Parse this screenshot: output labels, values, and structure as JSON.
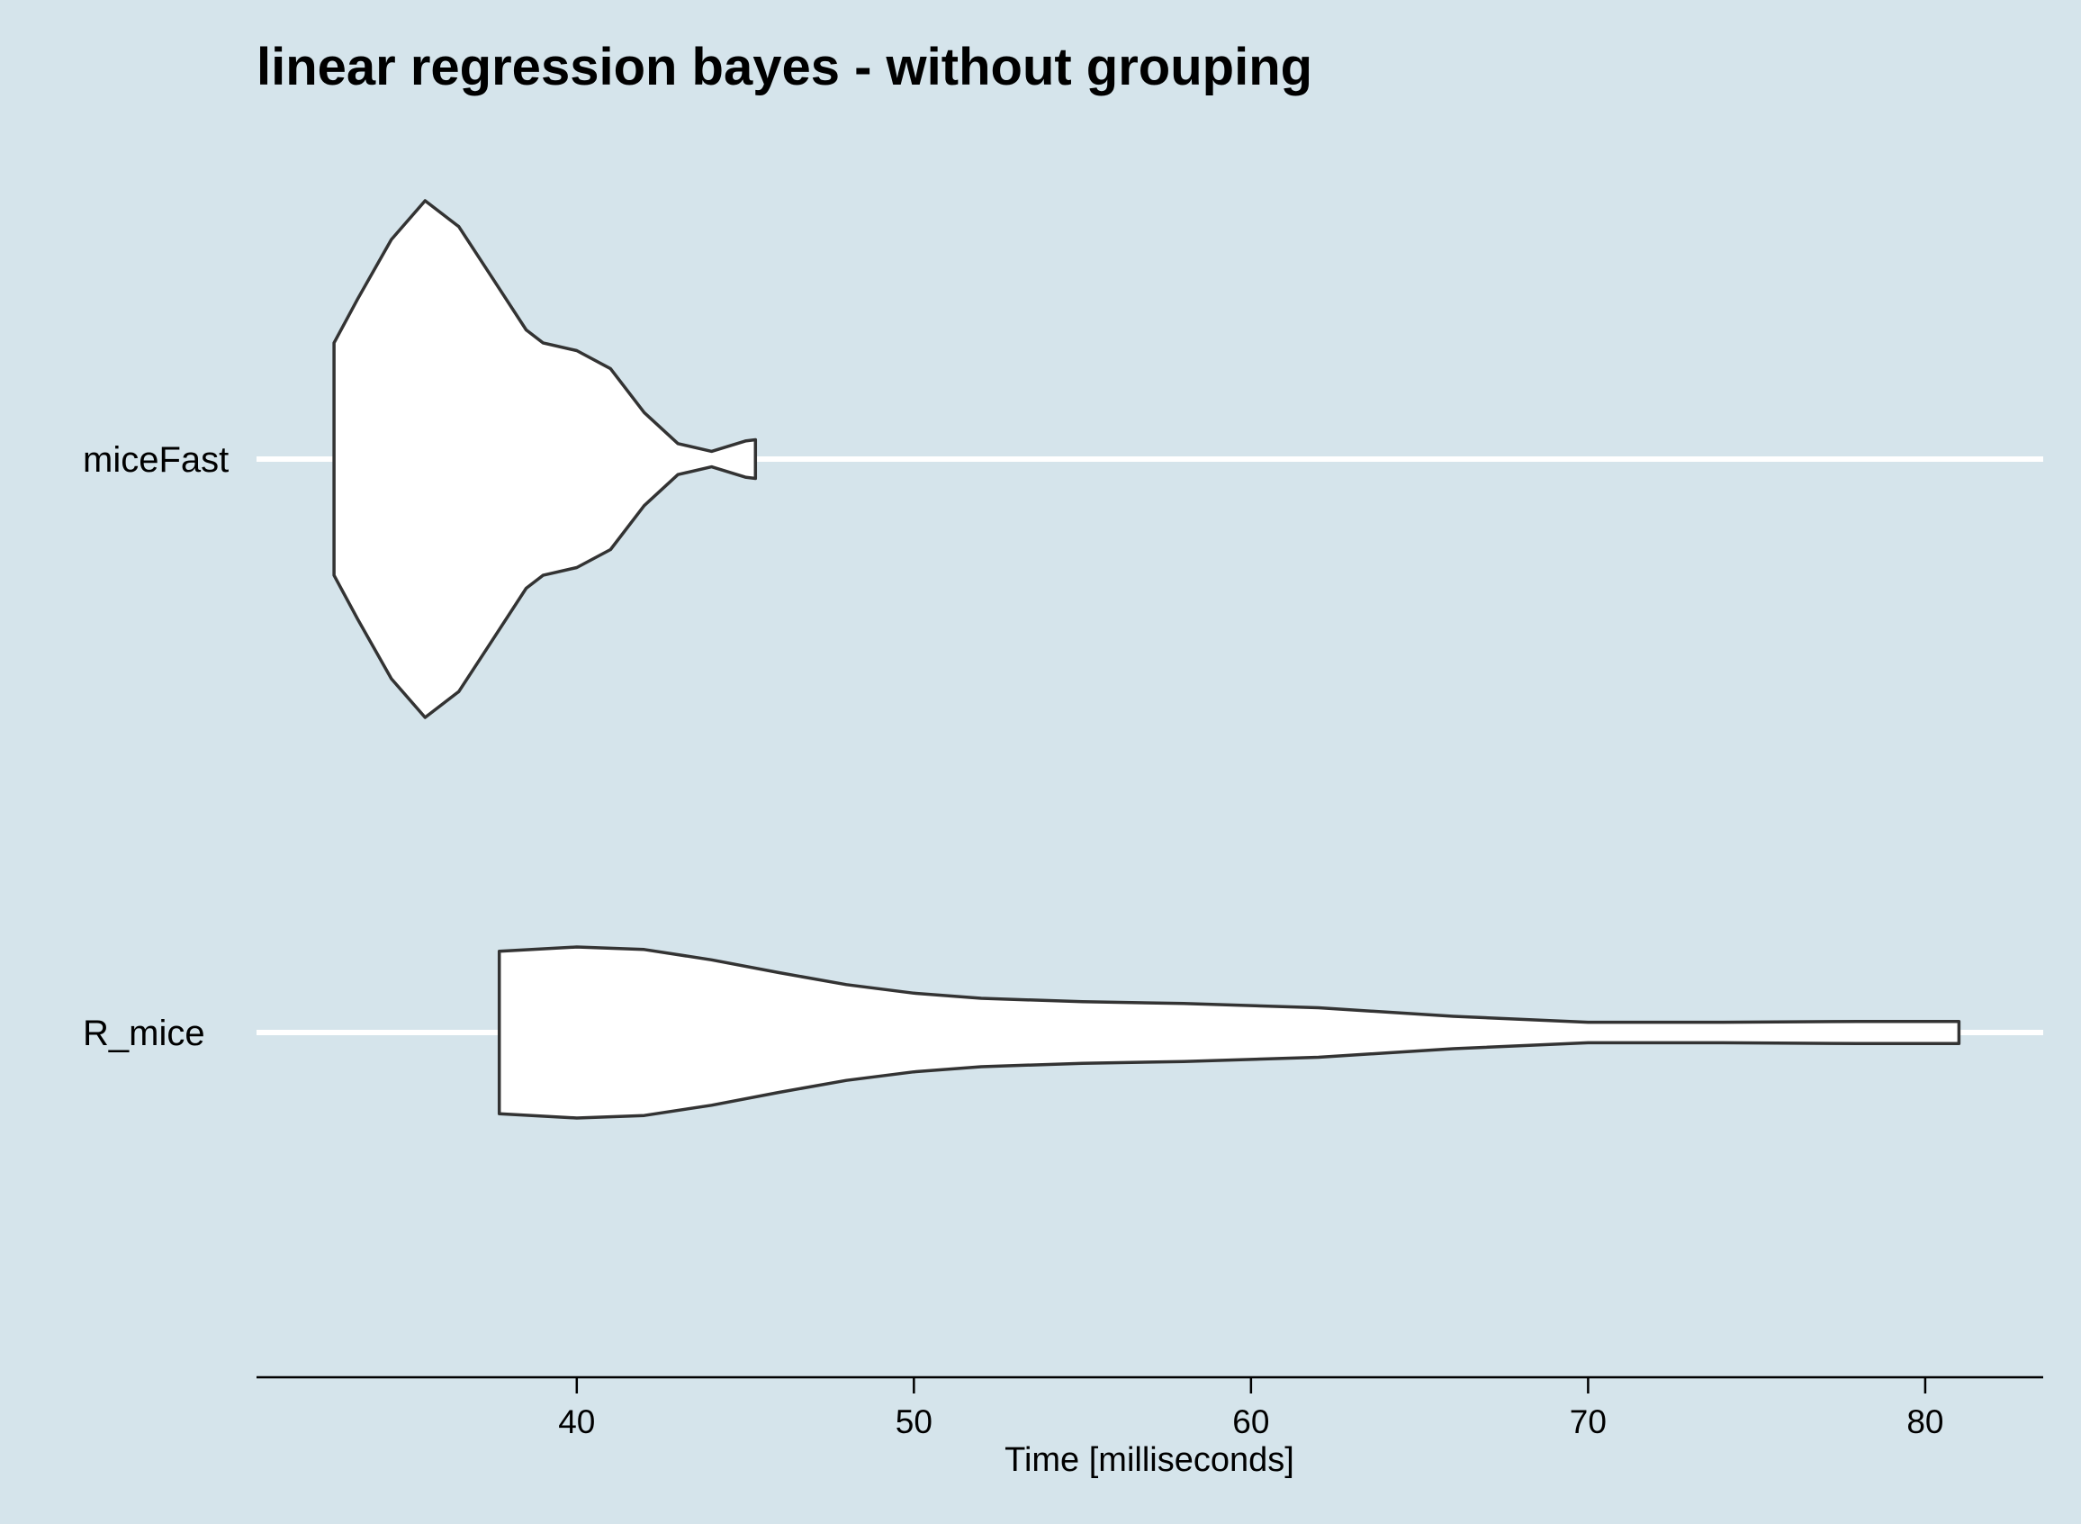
{
  "chart_data": {
    "type": "violin",
    "title": "linear regression bayes - without grouping",
    "xlabel": "Time [milliseconds]",
    "ylabel": "",
    "orientation": "horizontal",
    "xlim": [
      30.5,
      83.5
    ],
    "xticks": [
      40,
      50,
      60,
      70,
      80
    ],
    "categories": [
      "miceFast",
      "R_mice"
    ],
    "grid": {
      "horizontal": true,
      "vertical": false
    },
    "background_color": "#d5e4eb",
    "fill_color": "#ffffff",
    "outline_color": "#333333",
    "series": [
      {
        "category": "miceFast",
        "min": 32.8,
        "max": 45.3,
        "density_profile": [
          [
            32.8,
            0.45
          ],
          [
            33.5,
            0.62
          ],
          [
            34.5,
            0.85
          ],
          [
            35.5,
            1.0
          ],
          [
            36.5,
            0.9
          ],
          [
            37.5,
            0.7
          ],
          [
            38.5,
            0.5
          ],
          [
            39.0,
            0.45
          ],
          [
            40.0,
            0.42
          ],
          [
            41.0,
            0.35
          ],
          [
            42.0,
            0.18
          ],
          [
            43.0,
            0.06
          ],
          [
            44.0,
            0.03
          ],
          [
            45.0,
            0.07
          ],
          [
            45.3,
            0.075
          ]
        ]
      },
      {
        "category": "R_mice",
        "min": 37.7,
        "max": 81.0,
        "density_profile": [
          [
            37.7,
            0.95
          ],
          [
            40.0,
            1.0
          ],
          [
            42.0,
            0.97
          ],
          [
            44.0,
            0.85
          ],
          [
            46.0,
            0.7
          ],
          [
            48.0,
            0.56
          ],
          [
            50.0,
            0.46
          ],
          [
            52.0,
            0.4
          ],
          [
            55.0,
            0.36
          ],
          [
            58.0,
            0.34
          ],
          [
            62.0,
            0.29
          ],
          [
            66.0,
            0.19
          ],
          [
            70.0,
            0.12
          ],
          [
            74.0,
            0.12
          ],
          [
            78.0,
            0.13
          ],
          [
            81.0,
            0.13
          ]
        ]
      }
    ]
  }
}
